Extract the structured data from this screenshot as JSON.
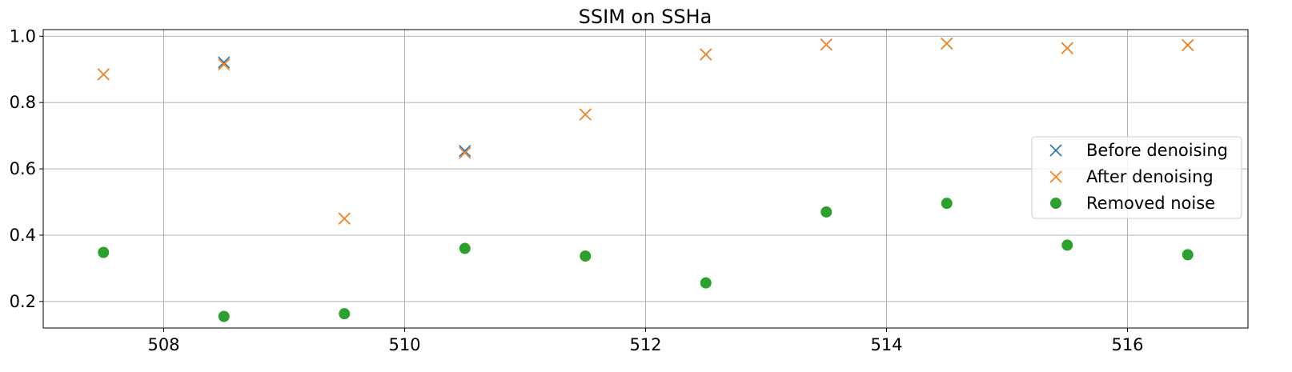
{
  "chart_data": {
    "type": "scatter",
    "title": "SSIM on SSHa",
    "xlabel": "",
    "ylabel": "",
    "xlim": [
      507,
      517
    ],
    "ylim": [
      0.12,
      1.02
    ],
    "xticks": [
      508,
      510,
      512,
      514,
      516
    ],
    "xtick_labels": [
      "508",
      "510",
      "512",
      "514",
      "516"
    ],
    "yticks": [
      0.2,
      0.4,
      0.6,
      0.8,
      1.0
    ],
    "ytick_labels": [
      "0.2",
      "0.4",
      "0.6",
      "0.8",
      "1.0"
    ],
    "grid": true,
    "legend_position": "center-right",
    "x": [
      507.5,
      508.5,
      509.5,
      510.5,
      511.5,
      512.5,
      513.5,
      514.5,
      515.5,
      516.5
    ],
    "series": [
      {
        "name": "Before denoising",
        "marker": "x",
        "color": "#1f77b4",
        "values": [
          0.885,
          0.921,
          0.45,
          0.654,
          0.764,
          0.945,
          0.975,
          0.978,
          0.964,
          0.973
        ]
      },
      {
        "name": "After denoising",
        "marker": "x",
        "color": "#ff7f0e",
        "values": [
          0.885,
          0.915,
          0.45,
          0.648,
          0.764,
          0.945,
          0.975,
          0.978,
          0.964,
          0.973
        ]
      },
      {
        "name": "Removed noise",
        "marker": "circle",
        "color": "#2ca02c",
        "values": [
          0.348,
          0.155,
          0.163,
          0.36,
          0.337,
          0.256,
          0.47,
          0.496,
          0.37,
          0.341
        ]
      }
    ]
  }
}
